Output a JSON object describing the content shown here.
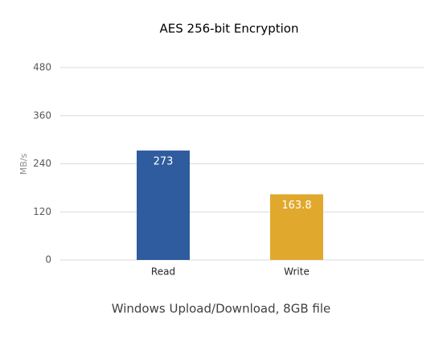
{
  "chart_data": {
    "type": "bar",
    "title": "AES 256-bit Encryption",
    "y_label": "MB/s",
    "x_label": "Windows Upload/Download, 8GB file",
    "categories": [
      "Read",
      "Write"
    ],
    "values": [
      273,
      163.8
    ],
    "colors": [
      "#2e5c9e",
      "#e1a82e"
    ],
    "ylim": [
      0,
      480
    ],
    "yticks": [
      0,
      120,
      240,
      360,
      480
    ],
    "grid": true
  }
}
